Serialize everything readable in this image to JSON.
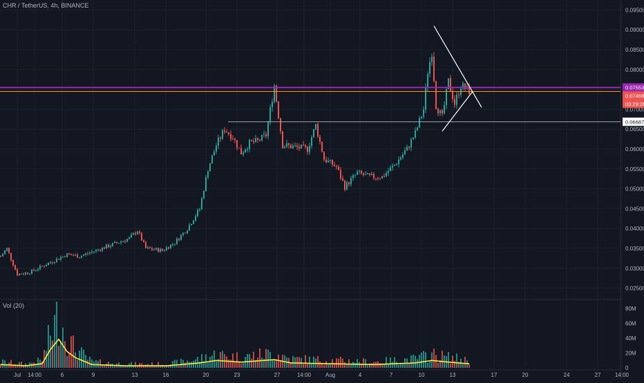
{
  "header": {
    "symbol": "CHR / TetherUS",
    "interval": "4h",
    "exchange": "BINANCE",
    "separator": ", "
  },
  "volume_panel": {
    "label": "Vol (20)"
  },
  "price_tags": {
    "top_hidden": "0.07553",
    "last_price": "0.07468",
    "countdown": "03:29:28",
    "support_level": "0.06687"
  },
  "colors": {
    "background": "#131722",
    "grid": "#1e222d",
    "up_candle": "#26a69a",
    "down_candle": "#ef5350",
    "purple_line": "#9c27b0",
    "orange_line": "#ff9800",
    "volume_ma": "#ffeb3b",
    "triangle_lines": "#ffffff"
  },
  "chart_data": {
    "type": "candlestick",
    "price_axis": {
      "ticks": [
        "0.09500",
        "0.09000",
        "0.08500",
        "0.08000",
        "0.07500",
        "0.07000",
        "0.06500",
        "0.06000",
        "0.05500",
        "0.05000",
        "0.04500",
        "0.04000",
        "0.03500",
        "0.03000",
        "0.02500"
      ],
      "range": [
        0.0225,
        0.0975
      ]
    },
    "volume_axis": {
      "ticks": [
        "80M",
        "60M",
        "40M",
        "20M",
        "0"
      ],
      "range": [
        0,
        80
      ]
    },
    "time_axis_labels": [
      "Jul",
      "14:00",
      "6",
      "9",
      "13",
      "16",
      "20",
      "23",
      "27",
      "14:00",
      "Aug",
      "4",
      "7",
      "10",
      "13",
      "17",
      "20",
      "24",
      "27",
      "14:00"
    ],
    "horizontal_levels": [
      {
        "name": "purple-resistance",
        "value": 0.0755
      },
      {
        "name": "orange-resistance",
        "value": 0.0745
      },
      {
        "name": "support",
        "value": 0.06687
      }
    ],
    "triangle": {
      "upper_line": [
        [
          "Aug 11",
          0.091
        ],
        [
          "Aug 15",
          0.0705
        ]
      ],
      "lower_line": [
        [
          "Aug 12",
          0.0645
        ],
        [
          "Aug 14",
          0.0745
        ]
      ]
    },
    "price_anchors": [
      [
        0,
        0.033
      ],
      [
        3,
        0.035
      ],
      [
        8,
        0.0285
      ],
      [
        14,
        0.029
      ],
      [
        22,
        0.031
      ],
      [
        32,
        0.0335
      ],
      [
        38,
        0.033
      ],
      [
        46,
        0.0345
      ],
      [
        54,
        0.036
      ],
      [
        62,
        0.0375
      ],
      [
        66,
        0.0395
      ],
      [
        70,
        0.035
      ],
      [
        78,
        0.0345
      ],
      [
        84,
        0.0365
      ],
      [
        90,
        0.04
      ],
      [
        96,
        0.045
      ],
      [
        100,
        0.055
      ],
      [
        104,
        0.061
      ],
      [
        108,
        0.065
      ],
      [
        112,
        0.063
      ],
      [
        116,
        0.059
      ],
      [
        120,
        0.0615
      ],
      [
        124,
        0.062
      ],
      [
        128,
        0.0635
      ],
      [
        132,
        0.076
      ],
      [
        136,
        0.061
      ],
      [
        142,
        0.0605
      ],
      [
        148,
        0.06
      ],
      [
        152,
        0.066
      ],
      [
        156,
        0.0575
      ],
      [
        162,
        0.0555
      ],
      [
        166,
        0.0505
      ],
      [
        172,
        0.054
      ],
      [
        178,
        0.053
      ],
      [
        184,
        0.053
      ],
      [
        190,
        0.056
      ],
      [
        196,
        0.06
      ],
      [
        200,
        0.064
      ],
      [
        204,
        0.07
      ],
      [
        206,
        0.0795
      ],
      [
        208,
        0.0845
      ],
      [
        210,
        0.071
      ],
      [
        213,
        0.068
      ],
      [
        216,
        0.077
      ],
      [
        219,
        0.0715
      ],
      [
        222,
        0.076
      ],
      [
        226,
        0.0746
      ]
    ],
    "volume_anchors": [
      [
        0,
        8
      ],
      [
        12,
        5
      ],
      [
        20,
        10
      ],
      [
        24,
        45
      ],
      [
        28,
        70
      ],
      [
        32,
        40
      ],
      [
        36,
        25
      ],
      [
        44,
        8
      ],
      [
        60,
        5
      ],
      [
        80,
        5
      ],
      [
        96,
        12
      ],
      [
        104,
        18
      ],
      [
        116,
        14
      ],
      [
        132,
        20
      ],
      [
        140,
        12
      ],
      [
        160,
        10
      ],
      [
        180,
        8
      ],
      [
        200,
        12
      ],
      [
        208,
        18
      ],
      [
        216,
        14
      ],
      [
        226,
        10
      ]
    ]
  }
}
